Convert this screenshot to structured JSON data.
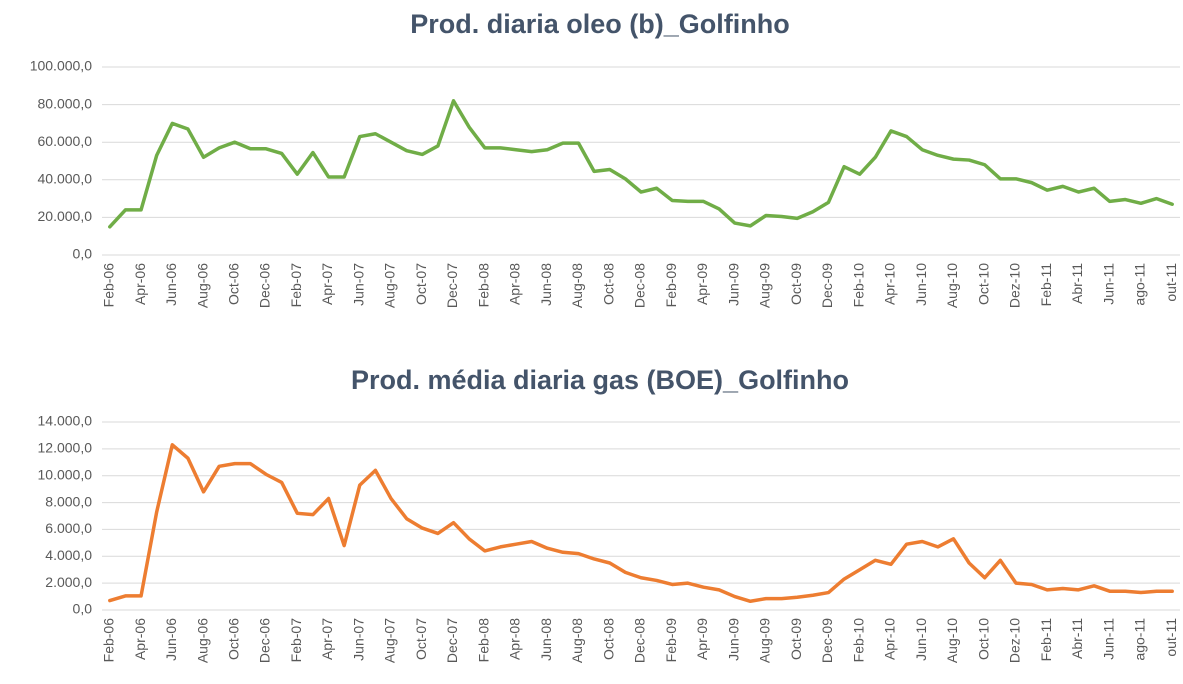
{
  "chart_data": [
    {
      "type": "line",
      "title": "Prod. diaria  oleo (b)_Golfinho",
      "color": "#70ad47",
      "grid": true,
      "categories": [
        "Feb-06",
        null,
        "Apr-06",
        null,
        "Jun-06",
        null,
        "Aug-06",
        null,
        "Oct-06",
        null,
        "Dec-06",
        null,
        "Feb-07",
        null,
        "Apr-07",
        null,
        "Jun-07",
        null,
        "Aug-07",
        null,
        "Oct-07",
        null,
        "Dec-07",
        null,
        "Feb-08",
        null,
        "Apr-08",
        null,
        "Jun-08",
        null,
        "Aug-08",
        null,
        "Oct-08",
        null,
        "Dec-08",
        null,
        "Feb-09",
        null,
        "Apr-09",
        null,
        "Jun-09",
        null,
        "Aug-09",
        null,
        "Oct-09",
        null,
        "Dec-09",
        null,
        "Feb-10",
        null,
        "Apr-10",
        null,
        "Jun-10",
        null,
        "Aug-10",
        null,
        "Oct-10",
        null,
        "Dez-10",
        null,
        "Feb-11",
        null,
        "Abr-11",
        null,
        "Jun-11",
        null,
        "ago-11",
        null,
        "out-11"
      ],
      "values": [
        15000,
        24000,
        24000,
        53000,
        70000,
        67000,
        52000,
        57000,
        60000,
        56500,
        56500,
        54000,
        43000,
        54500,
        41500,
        41500,
        63000,
        64500,
        60000,
        55500,
        53500,
        58000,
        82000,
        68000,
        57000,
        57000,
        56000,
        55000,
        56000,
        59500,
        59500,
        44500,
        45500,
        40500,
        33500,
        35500,
        29000,
        28500,
        28500,
        24500,
        17000,
        15500,
        21000,
        20500,
        19500,
        23000,
        28000,
        47000,
        43000,
        52000,
        66000,
        63000,
        56000,
        53000,
        51000,
        50500,
        48000,
        40500,
        40500,
        38500,
        34500,
        36500,
        33500,
        35500,
        28500,
        29500,
        27500,
        30000,
        27000
      ],
      "ylim": [
        0,
        100000
      ],
      "yticks": [
        {
          "value": 0,
          "label": "0,0"
        },
        {
          "value": 20000,
          "label": "20.000,0"
        },
        {
          "value": 40000,
          "label": "40.000,0"
        },
        {
          "value": 60000,
          "label": "60.000,0"
        },
        {
          "value": 80000,
          "label": "80.000,0"
        },
        {
          "value": 100000,
          "label": "100.000,0"
        }
      ]
    },
    {
      "type": "line",
      "title": "Prod. média diaria  gas (BOE)_Golfinho",
      "color": "#ed7d31",
      "grid": true,
      "categories": [
        "Feb-06",
        null,
        "Apr-06",
        null,
        "Jun-06",
        null,
        "Aug-06",
        null,
        "Oct-06",
        null,
        "Dec-06",
        null,
        "Feb-07",
        null,
        "Apr-07",
        null,
        "Jun-07",
        null,
        "Aug-07",
        null,
        "Oct-07",
        null,
        "Dec-07",
        null,
        "Feb-08",
        null,
        "Apr-08",
        null,
        "Jun-08",
        null,
        "Aug-08",
        null,
        "Oct-08",
        null,
        "Dec-08",
        null,
        "Feb-09",
        null,
        "Apr-09",
        null,
        "Jun-09",
        null,
        "Aug-09",
        null,
        "Oct-09",
        null,
        "Dec-09",
        null,
        "Feb-10",
        null,
        "Apr-10",
        null,
        "Jun-10",
        null,
        "Aug-10",
        null,
        "Oct-10",
        null,
        "Dez-10",
        null,
        "Feb-11",
        null,
        "Abr-11",
        null,
        "Jun-11",
        null,
        "ago-11",
        null,
        "out-11"
      ],
      "values": [
        700,
        1050,
        1050,
        7300,
        12300,
        11300,
        8800,
        10700,
        10900,
        10900,
        10100,
        9500,
        7200,
        7100,
        8300,
        4800,
        9300,
        10400,
        8300,
        6800,
        6100,
        5700,
        6500,
        5300,
        4400,
        4700,
        4900,
        5100,
        4600,
        4300,
        4200,
        3800,
        3500,
        2800,
        2400,
        2200,
        1900,
        2000,
        1700,
        1500,
        1000,
        650,
        850,
        850,
        950,
        1100,
        1300,
        2300,
        3000,
        3700,
        3400,
        4900,
        5100,
        4700,
        5300,
        3500,
        2400,
        3700,
        2000,
        1900,
        1500,
        1600,
        1500,
        1800,
        1400,
        1400,
        1300,
        1400,
        1400
      ],
      "ylim": [
        0,
        14000
      ],
      "yticks": [
        {
          "value": 0,
          "label": "0,0"
        },
        {
          "value": 2000,
          "label": "2.000,0"
        },
        {
          "value": 4000,
          "label": "4.000,0"
        },
        {
          "value": 6000,
          "label": "6.000,0"
        },
        {
          "value": 8000,
          "label": "8.000,0"
        },
        {
          "value": 10000,
          "label": "10.000,0"
        },
        {
          "value": 12000,
          "label": "12.000,0"
        },
        {
          "value": 14000,
          "label": "14.000,0"
        }
      ]
    }
  ]
}
